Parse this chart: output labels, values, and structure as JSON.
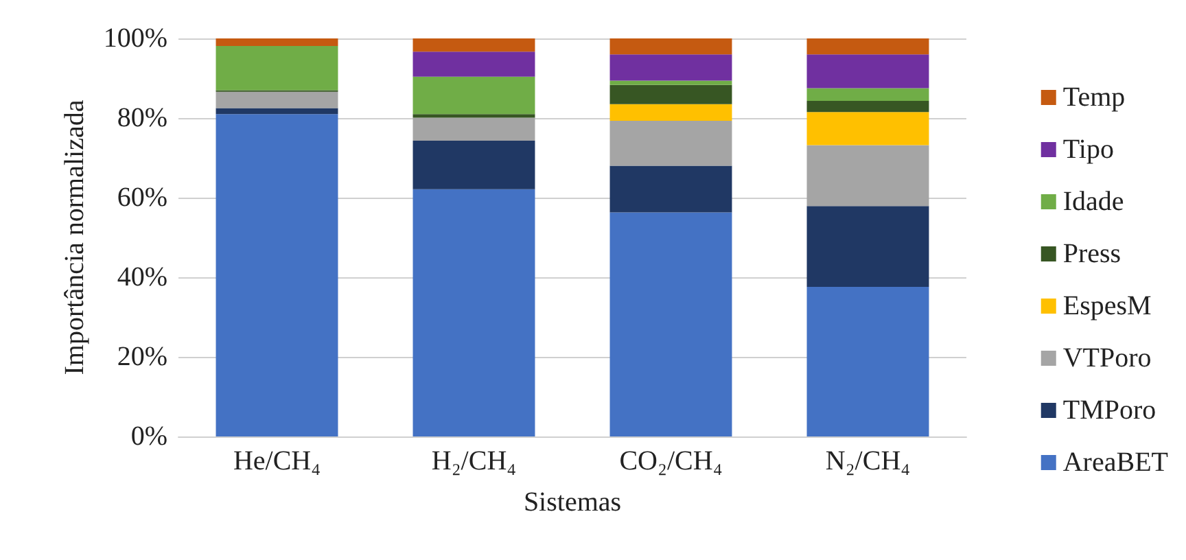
{
  "chart_data": {
    "type": "bar",
    "stacked": true,
    "xlabel": "Sistemas",
    "ylabel": "Importância normalizada",
    "categories": [
      "He/CH₄",
      "H₂/CH₄",
      "CO₂/CH₄",
      "N₂/CH₄"
    ],
    "series": [
      {
        "name": "AreaBET",
        "color": "#4472c4",
        "values": [
          81,
          62.1,
          56.3,
          37.6
        ]
      },
      {
        "name": "TMPoro",
        "color": "#203864",
        "values": [
          1.5,
          12.2,
          11.7,
          20.3
        ]
      },
      {
        "name": "VTPoro",
        "color": "#a5a5a5",
        "values": [
          4.1,
          5.8,
          11.3,
          15.3
        ]
      },
      {
        "name": "EspesM",
        "color": "#ffc000",
        "values": [
          0,
          0,
          4.2,
          8.3
        ]
      },
      {
        "name": "Press",
        "color": "#375623",
        "values": [
          0.4,
          0.9,
          4.8,
          2.8
        ]
      },
      {
        "name": "Idade",
        "color": "#70ad47",
        "values": [
          11.1,
          9.4,
          1.1,
          3.2
        ]
      },
      {
        "name": "Tipo",
        "color": "#7030a0",
        "values": [
          0,
          6.3,
          6.6,
          8.5
        ]
      },
      {
        "name": "Temp",
        "color": "#c55a11",
        "values": [
          2.1,
          3.3,
          4,
          4
        ]
      }
    ],
    "ylim": [
      0,
      100
    ],
    "yticks": [
      {
        "value": 0,
        "label": "0%"
      },
      {
        "value": 20,
        "label": "20%"
      },
      {
        "value": 40,
        "label": "40%"
      },
      {
        "value": 60,
        "label": "60%"
      },
      {
        "value": 80,
        "label": "80%"
      },
      {
        "value": 100,
        "label": "100%"
      }
    ],
    "grid": "y",
    "legend": "right"
  }
}
